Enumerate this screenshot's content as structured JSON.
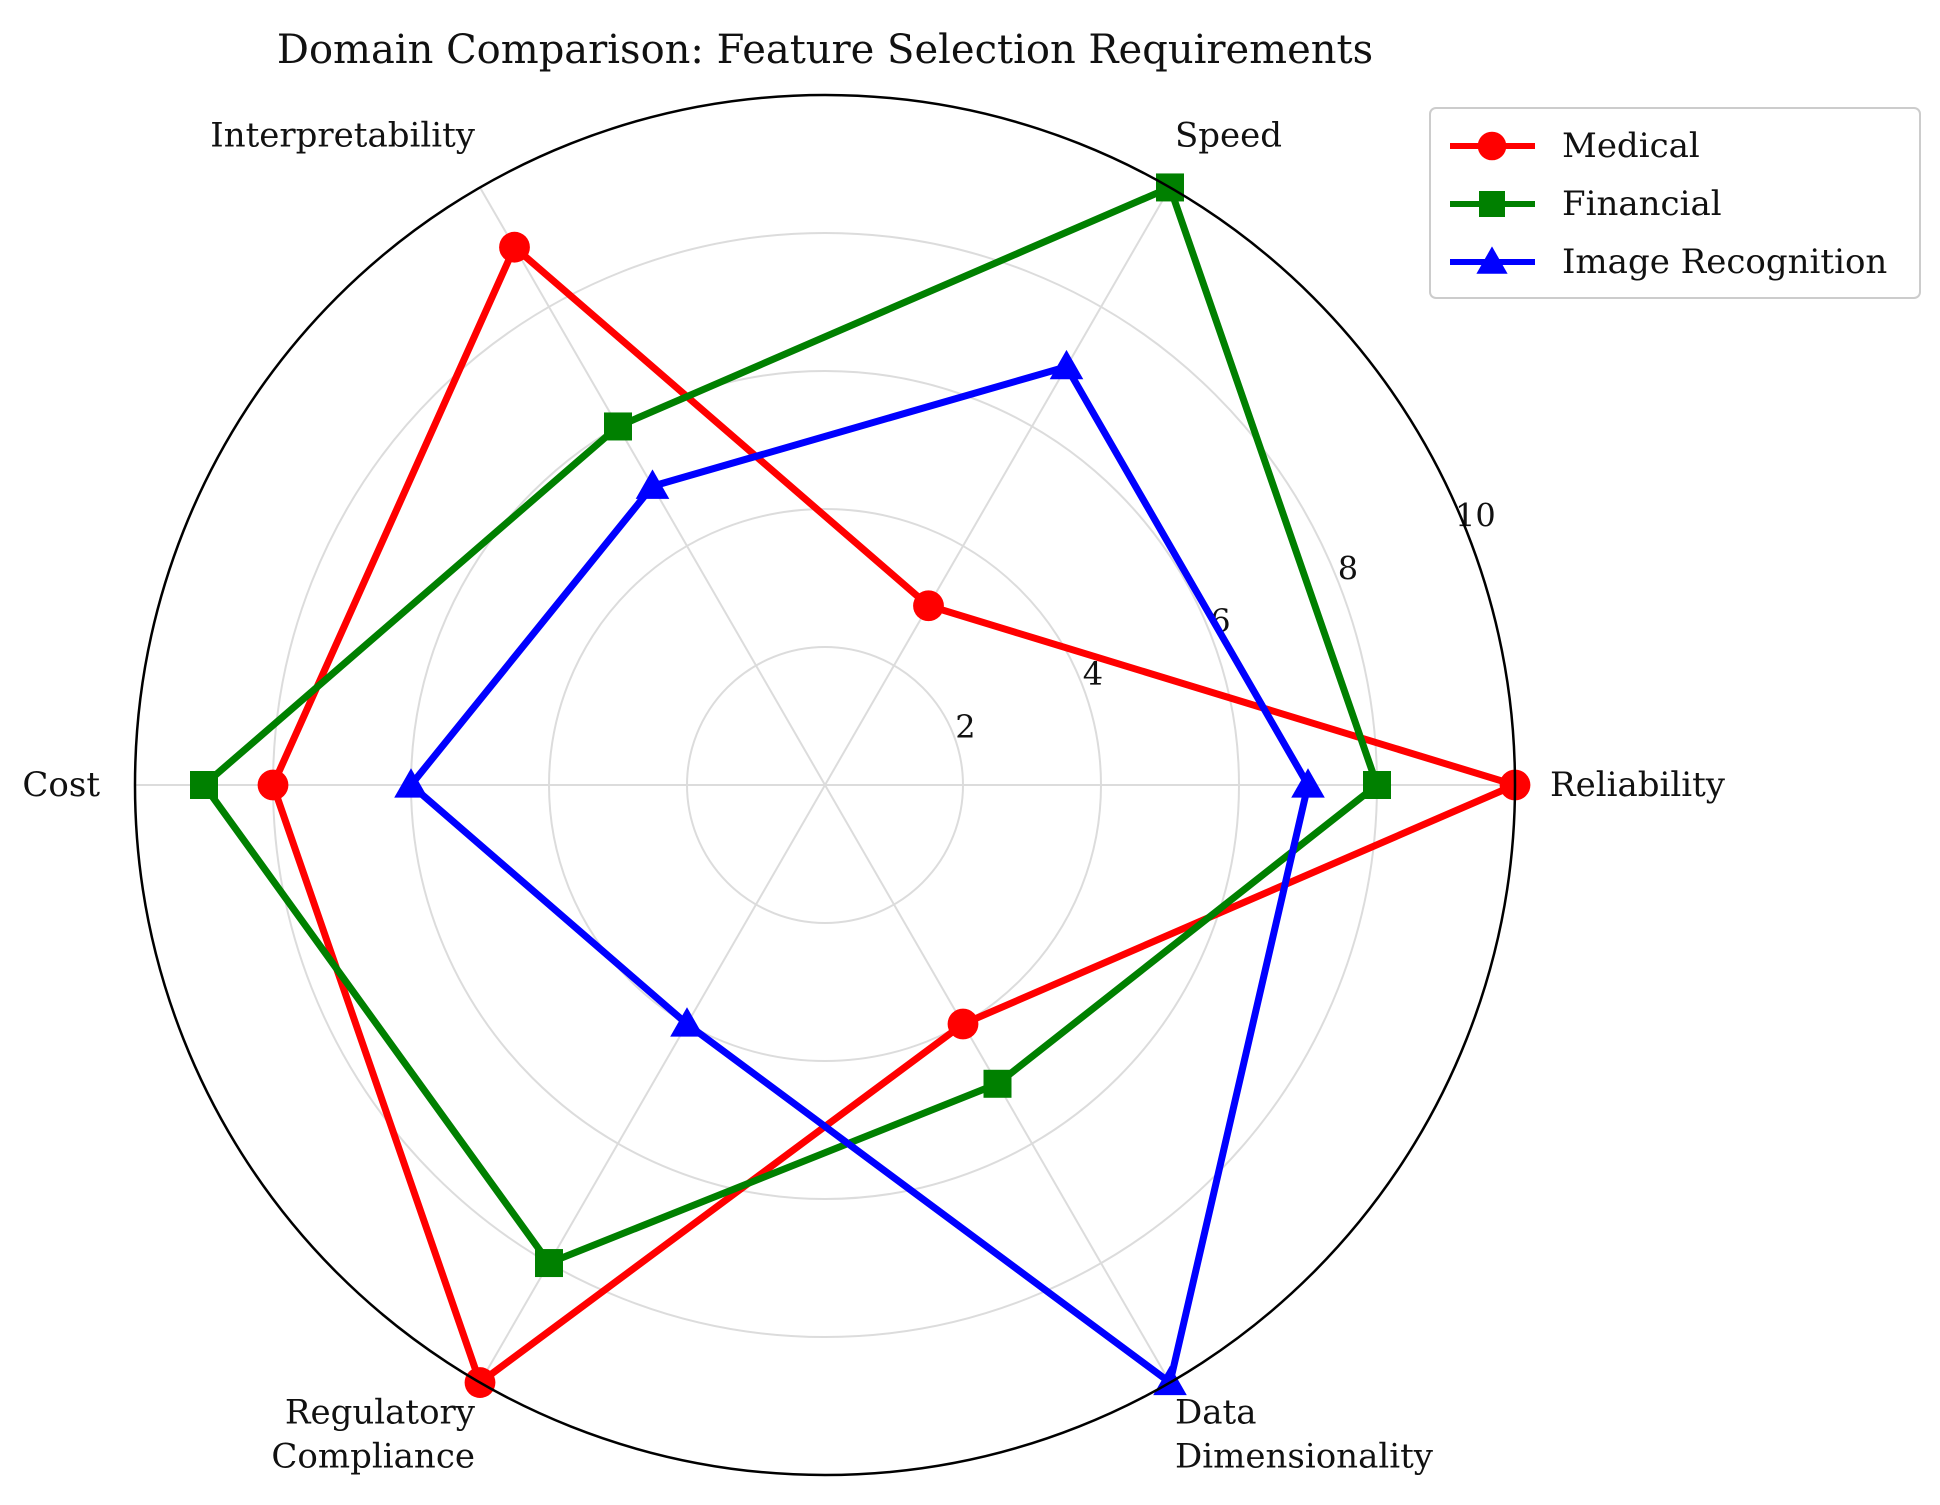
{
  "chart_data": {
    "type": "radar",
    "title": "Domain Comparison: Feature Selection Requirements",
    "axes": [
      [
        "Reliability"
      ],
      [
        "Speed"
      ],
      [
        "Interpretability"
      ],
      [
        "Cost"
      ],
      [
        "Regulatory",
        "Compliance"
      ],
      [
        "Data",
        "Dimensionality"
      ]
    ],
    "rlim": [
      0,
      10
    ],
    "r_ticks": [
      2,
      4,
      6,
      8,
      10
    ],
    "grid": true,
    "legend_position": "top-right",
    "series": [
      {
        "name": "Medical",
        "color": "#ff0000",
        "marker": "circle",
        "values": [
          10,
          3,
          9,
          8,
          10,
          4
        ]
      },
      {
        "name": "Financial",
        "color": "#008000",
        "marker": "square",
        "values": [
          8,
          10,
          6,
          9,
          8,
          5
        ]
      },
      {
        "name": "Image Recognition",
        "color": "#0000ff",
        "marker": "triangle",
        "values": [
          7,
          7,
          5,
          6,
          4,
          10
        ]
      }
    ]
  }
}
